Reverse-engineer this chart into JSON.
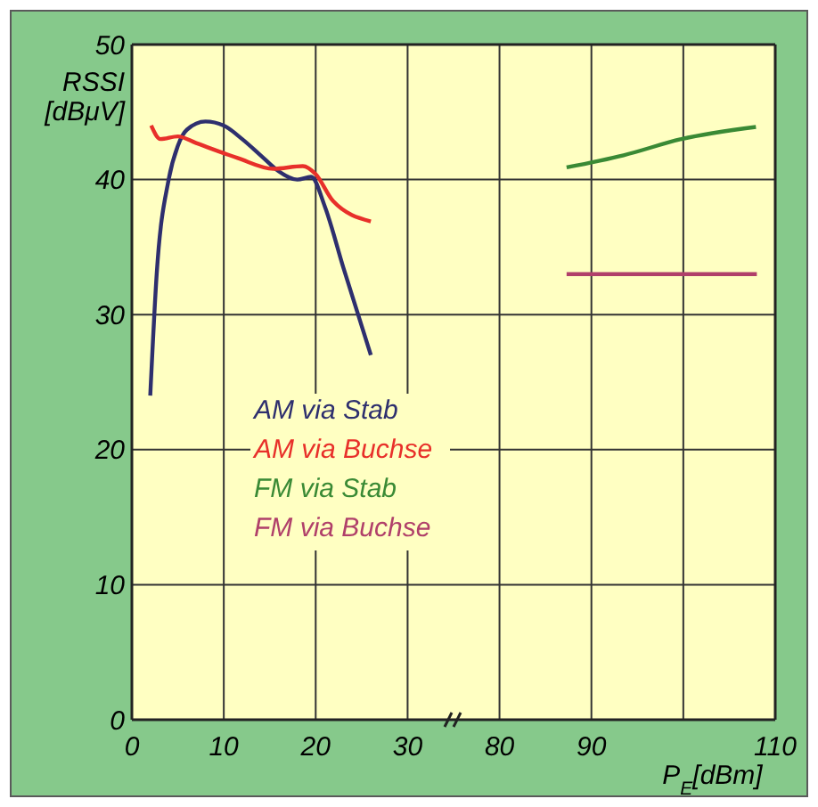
{
  "chart_data": [
    {
      "type": "line",
      "ylabel": "RSSI [dBμV]",
      "xlim": [
        0,
        35
      ],
      "ylim": [
        0,
        50
      ],
      "xticks": [
        0,
        10,
        20,
        30
      ],
      "yticks": [
        0,
        10,
        20,
        30,
        40,
        50
      ],
      "grid": true,
      "legend": "bottom right",
      "line_style": "solid",
      "marker": "none",
      "series": [
        {
          "name": "AM via Stab",
          "color": "#2e2f6e",
          "x": [
            2,
            2.7,
            4,
            5,
            6,
            8,
            10,
            12,
            14,
            16,
            18,
            19.5,
            21,
            23,
            26
          ],
          "values": [
            24,
            33,
            40,
            42.5,
            43.7,
            44.3,
            44,
            43,
            41.8,
            40.6,
            40,
            40.2,
            38,
            33.5,
            27
          ]
        },
        {
          "name": "AM via Buchse",
          "color": "#e8302a",
          "x": [
            2.1,
            3.1,
            5,
            7,
            11.5,
            15.4,
            18.6,
            20,
            21.9,
            26
          ],
          "values": [
            44,
            43,
            43.2,
            42.7,
            41.6,
            40.8,
            41,
            40.4,
            38.4,
            36.9
          ]
        }
      ]
    },
    {
      "type": "line",
      "xlabel": "P$_{E}$[dBm]",
      "xlim": [
        75,
        110
      ],
      "ylim": [
        0,
        50
      ],
      "xticks": [
        80,
        90,
        {
          "value": 100,
          "label": null
        },
        110
      ],
      "yticks": [
        0,
        10,
        20,
        30,
        40,
        50
      ],
      "tick_labels": "x",
      "grid": true,
      "legend": "left",
      "line_style": "solid",
      "marker": "none",
      "series": [
        {
          "name": "FM via Stab",
          "color": "#3a8a35",
          "x": [
            87.3,
            93.5,
            99.8,
            107.9
          ],
          "values": [
            40.9,
            41.8,
            43,
            43.9
          ]
        },
        {
          "name": "FM via Buchse",
          "color": "#b0406a",
          "x": [
            87.3,
            108
          ],
          "values": [
            33,
            33
          ]
        }
      ]
    }
  ]
}
